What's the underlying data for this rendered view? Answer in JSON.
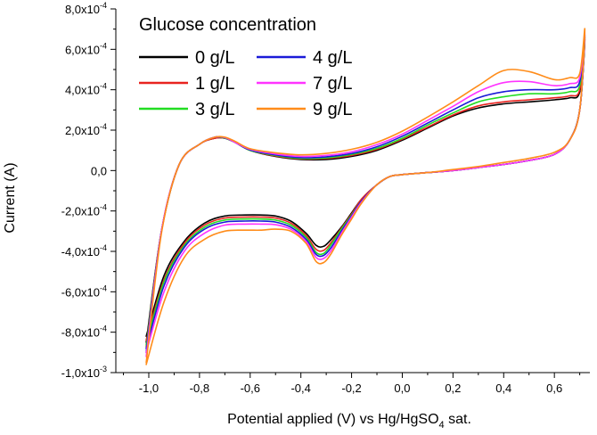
{
  "chart_data": {
    "type": "line",
    "xlabel": "Potential applied (V) vs Hg/HgSO",
    "xlabel_sub": "4",
    "xlabel_suffix": " sat.",
    "ylabel": "Current (A)",
    "xlim": [
      -1.13,
      0.74
    ],
    "ylim": [
      -0.001,
      0.0008
    ],
    "x_ticks": [
      -1.0,
      -0.8,
      -0.6,
      -0.4,
      -0.2,
      0.0,
      0.2,
      0.4,
      0.6
    ],
    "x_tick_labels": [
      "-1,0",
      "-0,8",
      "-0,6",
      "-0,4",
      "-0,2",
      "0,0",
      "0,2",
      "0,4",
      "0,6"
    ],
    "y_ticks": [
      {
        "value": 0.0008,
        "mantissa": "8,0x10",
        "exp": "-4"
      },
      {
        "value": 0.0006,
        "mantissa": "6,0x10",
        "exp": "-4"
      },
      {
        "value": 0.0004,
        "mantissa": "4,0x10",
        "exp": "-4"
      },
      {
        "value": 0.0002,
        "mantissa": "2,0x10",
        "exp": "-4"
      },
      {
        "value": 0.0,
        "mantissa": "0,0",
        "exp": ""
      },
      {
        "value": -0.0002,
        "mantissa": "-2,0x10",
        "exp": "-4"
      },
      {
        "value": -0.0004,
        "mantissa": "-4,0x10",
        "exp": "-4"
      },
      {
        "value": -0.0006,
        "mantissa": "-6,0x10",
        "exp": "-4"
      },
      {
        "value": -0.0008,
        "mantissa": "-8,0x10",
        "exp": "-4"
      },
      {
        "value": -0.001,
        "mantissa": "-1,0x10",
        "exp": "-3"
      }
    ],
    "legend": {
      "title": "Glucose concentration",
      "placement": "top-left",
      "columns": 2
    },
    "series": [
      {
        "name": "0 g/L",
        "color": "#000000",
        "x": [
          -1.01,
          -0.95,
          -0.88,
          -0.8,
          -0.74,
          -0.7,
          -0.66,
          -0.6,
          -0.5,
          -0.4,
          -0.3,
          -0.2,
          -0.1,
          0.0,
          0.1,
          0.2,
          0.3,
          0.4,
          0.5,
          0.6,
          0.66,
          0.7,
          0.72,
          0.7,
          0.66,
          0.6,
          0.5,
          0.4,
          0.3,
          0.2,
          0.1,
          0.0,
          -0.05,
          -0.1,
          -0.16,
          -0.2,
          -0.24,
          -0.28,
          -0.31,
          -0.34,
          -0.38,
          -0.44,
          -0.5,
          -0.56,
          -0.62,
          -0.7,
          -0.78,
          -0.86,
          -0.94,
          -1.01
        ],
        "y": [
          -0.00085,
          -0.0003,
          3e-05,
          0.00013,
          0.00016,
          0.00016,
          0.00014,
          0.0001,
          7e-05,
          5.5e-05,
          5.5e-05,
          7e-05,
          0.0001,
          0.00015,
          0.00021,
          0.00027,
          0.00031,
          0.00033,
          0.00034,
          0.00035,
          0.00036,
          0.00039,
          0.00065,
          0.0003,
          0.00015,
          8e-05,
          5e-05,
          3e-05,
          1.5e-05,
          0.0,
          -1e-05,
          -2e-05,
          -3e-05,
          -7e-05,
          -0.00014,
          -0.00021,
          -0.00028,
          -0.00034,
          -0.000375,
          -0.00037,
          -0.00031,
          -0.00025,
          -0.000225,
          -0.00022,
          -0.00022,
          -0.000225,
          -0.00026,
          -0.00035,
          -0.00052,
          -0.00082
        ]
      },
      {
        "name": "1 g/L",
        "color": "#e8231f",
        "x": [
          -1.01,
          -0.95,
          -0.88,
          -0.8,
          -0.74,
          -0.7,
          -0.66,
          -0.6,
          -0.5,
          -0.4,
          -0.3,
          -0.2,
          -0.1,
          0.0,
          0.1,
          0.2,
          0.3,
          0.4,
          0.5,
          0.6,
          0.66,
          0.7,
          0.72,
          0.7,
          0.66,
          0.6,
          0.5,
          0.4,
          0.3,
          0.2,
          0.1,
          0.0,
          -0.05,
          -0.1,
          -0.16,
          -0.2,
          -0.24,
          -0.28,
          -0.31,
          -0.34,
          -0.38,
          -0.44,
          -0.5,
          -0.56,
          -0.62,
          -0.7,
          -0.78,
          -0.86,
          -0.94,
          -1.01
        ],
        "y": [
          -0.00087,
          -0.0003,
          3e-05,
          0.00013,
          0.00016,
          0.00016,
          0.00014,
          0.0001,
          7.2e-05,
          5.8e-05,
          6e-05,
          7.5e-05,
          0.000105,
          0.000155,
          0.000215,
          0.000275,
          0.00032,
          0.00034,
          0.00035,
          0.00036,
          0.00037,
          0.0004,
          0.00066,
          0.0003,
          0.00015,
          8e-05,
          5e-05,
          3e-05,
          1.5e-05,
          0.0,
          -1e-05,
          -2e-05,
          -3e-05,
          -7e-05,
          -0.00014,
          -0.000215,
          -0.000285,
          -0.000355,
          -0.000395,
          -0.00039,
          -0.00032,
          -0.00026,
          -0.000235,
          -0.00023,
          -0.00023,
          -0.000235,
          -0.00027,
          -0.00036,
          -0.00054,
          -0.00084
        ]
      },
      {
        "name": "3 g/L",
        "color": "#22dd22",
        "x": [
          -1.01,
          -0.95,
          -0.88,
          -0.8,
          -0.74,
          -0.7,
          -0.66,
          -0.6,
          -0.5,
          -0.4,
          -0.3,
          -0.2,
          -0.1,
          0.0,
          0.1,
          0.2,
          0.3,
          0.4,
          0.5,
          0.6,
          0.66,
          0.7,
          0.72,
          0.7,
          0.66,
          0.6,
          0.5,
          0.4,
          0.3,
          0.2,
          0.1,
          0.0,
          -0.05,
          -0.1,
          -0.16,
          -0.2,
          -0.24,
          -0.28,
          -0.31,
          -0.34,
          -0.38,
          -0.44,
          -0.5,
          -0.56,
          -0.62,
          -0.7,
          -0.78,
          -0.86,
          -0.94,
          -1.01
        ],
        "y": [
          -0.00088,
          -0.0003,
          3e-05,
          0.00013,
          0.000165,
          0.00016,
          0.00014,
          0.0001,
          7.5e-05,
          6e-05,
          6.3e-05,
          8e-05,
          0.00011,
          0.00016,
          0.000225,
          0.000285,
          0.00034,
          0.000365,
          0.00038,
          0.00038,
          0.00039,
          0.00042,
          0.00066,
          0.0003,
          0.00015,
          8e-05,
          5e-05,
          3e-05,
          1.5e-05,
          0.0,
          -1e-05,
          -2e-05,
          -3e-05,
          -7e-05,
          -0.00015,
          -0.00022,
          -0.00029,
          -0.000365,
          -0.00041,
          -0.000405,
          -0.00033,
          -0.00027,
          -0.000245,
          -0.00024,
          -0.00024,
          -0.000245,
          -0.00028,
          -0.00037,
          -0.00055,
          -0.00086
        ]
      },
      {
        "name": "4 g/L",
        "color": "#1a1ad8",
        "x": [
          -1.01,
          -0.95,
          -0.88,
          -0.8,
          -0.74,
          -0.7,
          -0.66,
          -0.6,
          -0.5,
          -0.4,
          -0.3,
          -0.2,
          -0.1,
          0.0,
          0.1,
          0.2,
          0.3,
          0.4,
          0.5,
          0.6,
          0.66,
          0.7,
          0.72,
          0.7,
          0.66,
          0.6,
          0.5,
          0.4,
          0.3,
          0.2,
          0.1,
          0.0,
          -0.05,
          -0.1,
          -0.16,
          -0.2,
          -0.24,
          -0.28,
          -0.31,
          -0.34,
          -0.38,
          -0.44,
          -0.5,
          -0.56,
          -0.62,
          -0.7,
          -0.78,
          -0.86,
          -0.94,
          -1.01
        ],
        "y": [
          -0.0009,
          -0.0003,
          3e-05,
          0.00013,
          0.000165,
          0.000162,
          0.00014,
          0.000102,
          7.8e-05,
          6.4e-05,
          6.8e-05,
          8.5e-05,
          0.000118,
          0.00017,
          0.000235,
          0.0003,
          0.00036,
          0.00039,
          0.0004,
          0.0004,
          0.00041,
          0.00044,
          0.00067,
          0.0003,
          0.00015,
          8e-05,
          5e-05,
          3e-05,
          1.5e-05,
          0.0,
          -1e-05,
          -2e-05,
          -3e-05,
          -7e-05,
          -0.00015,
          -0.000225,
          -0.0003,
          -0.00038,
          -0.00042,
          -0.000415,
          -0.00034,
          -0.00028,
          -0.000255,
          -0.00025,
          -0.00025,
          -0.000255,
          -0.00029,
          -0.00038,
          -0.00057,
          -0.00088
        ]
      },
      {
        "name": "7 g/L",
        "color": "#ff33ff",
        "x": [
          -1.01,
          -0.95,
          -0.88,
          -0.8,
          -0.74,
          -0.7,
          -0.66,
          -0.6,
          -0.5,
          -0.4,
          -0.3,
          -0.2,
          -0.1,
          0.0,
          0.1,
          0.2,
          0.3,
          0.4,
          0.5,
          0.6,
          0.66,
          0.7,
          0.72,
          0.7,
          0.66,
          0.6,
          0.5,
          0.4,
          0.3,
          0.2,
          0.1,
          0.0,
          -0.05,
          -0.1,
          -0.16,
          -0.2,
          -0.24,
          -0.28,
          -0.31,
          -0.34,
          -0.38,
          -0.44,
          -0.5,
          -0.56,
          -0.62,
          -0.7,
          -0.78,
          -0.86,
          -0.94,
          -1.01
        ],
        "y": [
          -0.00092,
          -0.0003,
          3e-05,
          0.00013,
          0.000165,
          0.000163,
          0.00014,
          0.000105,
          8.2e-05,
          7e-05,
          7.5e-05,
          9.3e-05,
          0.000128,
          0.00018,
          0.000248,
          0.000318,
          0.00039,
          0.000435,
          0.00044,
          0.00042,
          0.00043,
          0.00046,
          0.00068,
          0.0003,
          0.00015,
          8e-05,
          5e-05,
          3e-05,
          1.5e-05,
          0.0,
          -1e-05,
          -2e-05,
          -3e-05,
          -7e-05,
          -0.000155,
          -0.00023,
          -0.00031,
          -0.000395,
          -0.000435,
          -0.00043,
          -0.00035,
          -0.00029,
          -0.000268,
          -0.000265,
          -0.000265,
          -0.00027,
          -0.00031,
          -0.0004,
          -0.0006,
          -0.0009
        ]
      },
      {
        "name": "9 g/L",
        "color": "#ff8c1a",
        "x": [
          -1.01,
          -0.95,
          -0.88,
          -0.8,
          -0.74,
          -0.7,
          -0.66,
          -0.6,
          -0.5,
          -0.4,
          -0.3,
          -0.2,
          -0.1,
          0.0,
          0.1,
          0.2,
          0.3,
          0.4,
          0.5,
          0.6,
          0.66,
          0.7,
          0.72,
          0.7,
          0.66,
          0.6,
          0.5,
          0.4,
          0.3,
          0.2,
          0.1,
          0.0,
          -0.05,
          -0.1,
          -0.16,
          -0.2,
          -0.24,
          -0.28,
          -0.31,
          -0.34,
          -0.38,
          -0.44,
          -0.5,
          -0.56,
          -0.62,
          -0.7,
          -0.78,
          -0.86,
          -0.94,
          -1.01
        ],
        "y": [
          -0.00095,
          -0.00031,
          3e-05,
          0.00013,
          0.000165,
          0.000165,
          0.000145,
          0.000108,
          8.8e-05,
          7.8e-05,
          8.5e-05,
          0.000105,
          0.00014,
          0.000195,
          0.000265,
          0.00034,
          0.00042,
          0.000495,
          0.00049,
          0.00045,
          0.00046,
          0.00048,
          0.0007,
          0.0003,
          0.00015,
          9e-05,
          6e-05,
          4e-05,
          2e-05,
          5e-06,
          -1e-05,
          -2e-05,
          -3e-05,
          -7e-05,
          -0.00016,
          -0.00024,
          -0.00032,
          -0.00041,
          -0.000455,
          -0.00045,
          -0.00036,
          -0.0003,
          -0.00029,
          -0.000295,
          -0.000295,
          -0.0003,
          -0.00034,
          -0.00043,
          -0.00065,
          -0.00096
        ]
      }
    ]
  }
}
